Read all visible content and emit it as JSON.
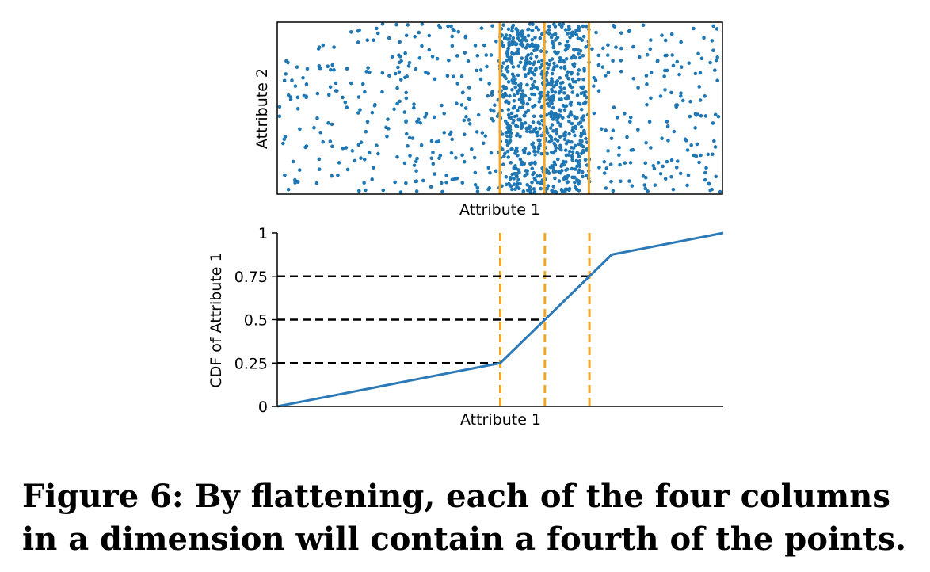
{
  "caption": "Figure 6: By flattening, each of the four columns in a dimension will contain a fourth of the points.",
  "colors": {
    "points": "#1f77b4",
    "boundaries": "#f5a623",
    "cdf_line": "#2b79b6",
    "guides": "#000000"
  },
  "chart_data": [
    {
      "type": "scatter",
      "xlabel": "Attribute 1",
      "ylabel": "Attribute 2",
      "xlim": [
        0,
        1
      ],
      "ylim": [
        0,
        1
      ],
      "ticks_shown": false,
      "distribution": {
        "description": "uniform background points with a dense band between x=0.50 and x=0.70",
        "uniform_count": 600,
        "dense_count": 650,
        "dense_range": [
          0.5,
          0.7
        ]
      },
      "column_boundaries": [
        0.5,
        0.6,
        0.7
      ],
      "boundary_style": "solid"
    },
    {
      "type": "line",
      "xlabel": "Attribute 1",
      "ylabel": "CDF of Attribute 1",
      "xlim": [
        0,
        1
      ],
      "ylim": [
        0,
        1
      ],
      "yticks": [
        0,
        0.25,
        0.5,
        0.75,
        1
      ],
      "ytick_labels": [
        "0",
        "0.25",
        "0.5",
        "0.75",
        "1"
      ],
      "series": [
        {
          "x": [
            0,
            0.5,
            0.75,
            1.0
          ],
          "y": [
            0,
            0.25,
            0.875,
            1.0
          ]
        }
      ],
      "vertical_guides": [
        0.5,
        0.6,
        0.7
      ],
      "vertical_guide_style": "dashed",
      "horizontal_guides": [
        {
          "y": 0.25,
          "x_end": 0.5
        },
        {
          "y": 0.5,
          "x_end": 0.6
        },
        {
          "y": 0.75,
          "x_end": 0.7
        }
      ],
      "horizontal_guide_style": "dashed"
    }
  ]
}
